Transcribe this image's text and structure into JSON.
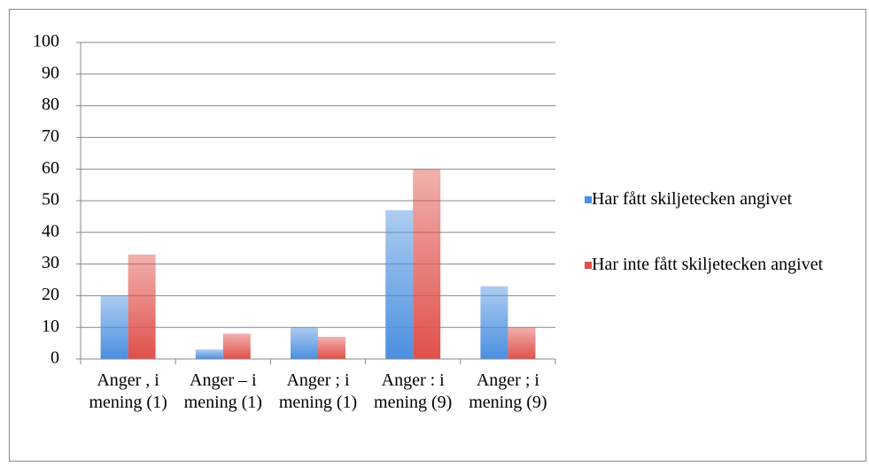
{
  "chart_data": {
    "type": "bar",
    "categories": [
      "Anger , i mening (1)",
      "Anger – i mening (1)",
      "Anger ; i mening (1)",
      "Anger : i mening (9)",
      "Anger ; i mening (9)"
    ],
    "series": [
      {
        "name": "Har fått skiljetecken angivet",
        "color": "#4a8fe0",
        "values": [
          20,
          3,
          10,
          47,
          23
        ]
      },
      {
        "name": "Har inte fått skiljetecken angivet",
        "color": "#e0504a",
        "values": [
          33,
          8,
          7,
          60,
          10
        ]
      }
    ],
    "ylim": [
      0,
      100
    ],
    "yticks": [
      0,
      10,
      20,
      30,
      40,
      50,
      60,
      70,
      80,
      90,
      100
    ],
    "grid": true,
    "legend": "right"
  }
}
